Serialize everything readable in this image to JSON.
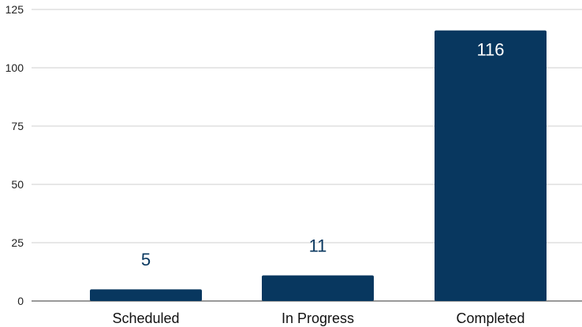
{
  "chart_data": {
    "type": "bar",
    "categories": [
      "Scheduled",
      "In Progress",
      "Completed"
    ],
    "values": [
      5,
      11,
      116
    ],
    "title": "",
    "xlabel": "",
    "ylabel": "",
    "ylim": [
      0,
      125
    ],
    "yticks": [
      0,
      25,
      50,
      75,
      100,
      125
    ],
    "grid": true,
    "legend": "none",
    "bar_color": "#08375f",
    "label_color_outside": "#08375f",
    "label_color_inside": "#ffffff"
  }
}
